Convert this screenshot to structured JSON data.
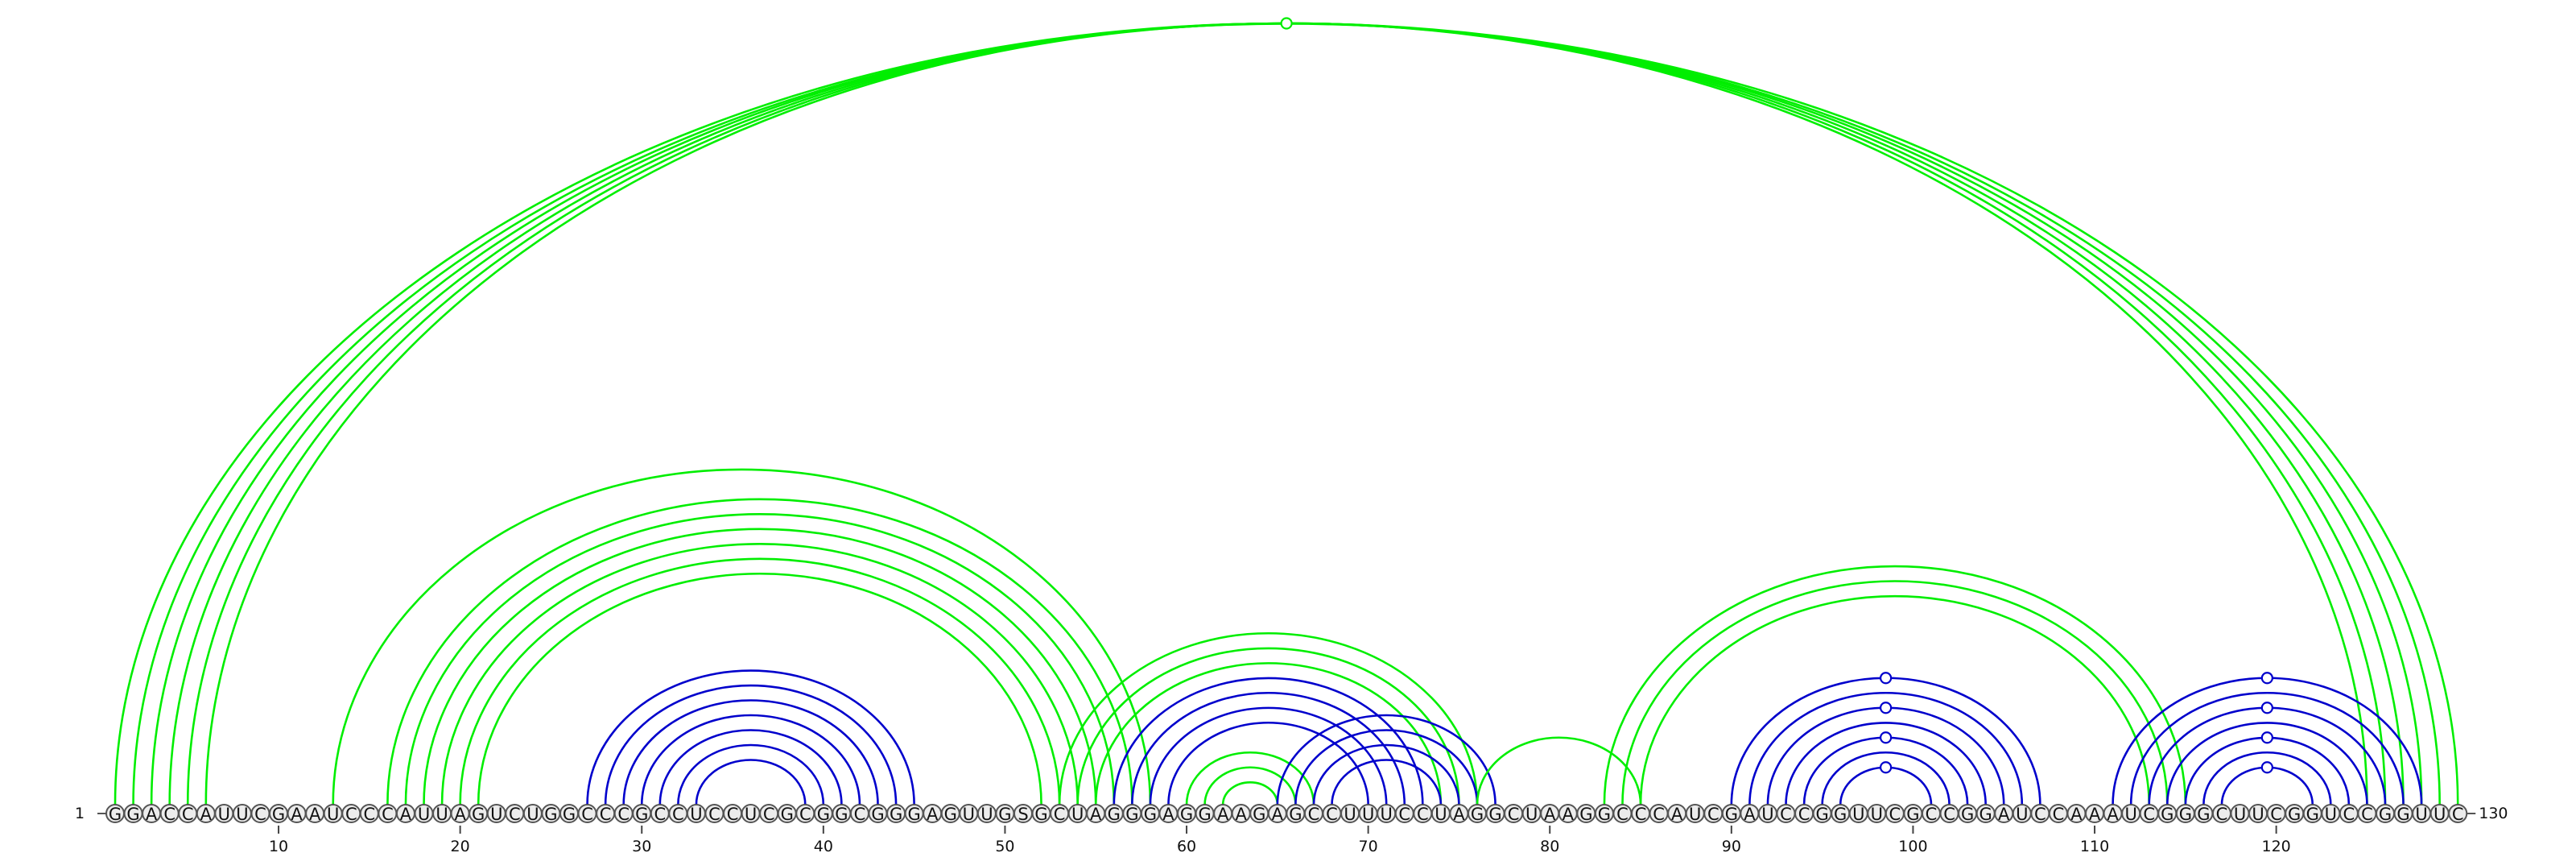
{
  "chart_data": {
    "type": "arc-diagram",
    "sequence": "GGACCAUUCGAAUCCCAUUAGUCUGGCCCGCCUCCUCGCGGCGGGAGUUGSGCUAGGGAGGAAGAGCCUUUCCUAGGCUAAGGCCCAUCGAUCCGGUUCGCCGGAUCCAAAUCGGGCUUCGGUCCGGUUC",
    "start_label": "1",
    "end_label": "130",
    "ticks": [
      "10",
      "20",
      "30",
      "40",
      "50",
      "60",
      "70",
      "80",
      "90",
      "100",
      "110",
      "120"
    ],
    "colors": {
      "green": "#00ee00",
      "blue": "#0000cc"
    },
    "arc_groups": [
      {
        "color": "green",
        "pairs": [
          [
            1,
            130
          ],
          [
            2,
            129
          ],
          [
            3,
            128
          ],
          [
            4,
            127
          ],
          [
            5,
            126
          ],
          [
            6,
            125
          ]
        ],
        "marker": true
      },
      {
        "color": "green",
        "pairs": [
          [
            13,
            58
          ]
        ]
      },
      {
        "color": "green",
        "pairs": [
          [
            16,
            57
          ],
          [
            17,
            56
          ],
          [
            18,
            55
          ]
        ]
      },
      {
        "color": "green",
        "pairs": [
          [
            19,
            54
          ],
          [
            20,
            53
          ],
          [
            21,
            52
          ]
        ]
      },
      {
        "color": "blue",
        "pairs": [
          [
            27,
            45
          ],
          [
            28,
            44
          ],
          [
            29,
            43
          ],
          [
            30,
            42
          ],
          [
            31,
            41
          ],
          [
            32,
            40
          ],
          [
            33,
            39
          ]
        ]
      },
      {
        "color": "green",
        "pairs": [
          [
            53,
            76
          ],
          [
            54,
            75
          ],
          [
            55,
            74
          ]
        ]
      },
      {
        "color": "blue",
        "pairs": [
          [
            56,
            73
          ],
          [
            57,
            72
          ],
          [
            58,
            71
          ],
          [
            59,
            70
          ]
        ]
      },
      {
        "color": "green",
        "pairs": [
          [
            60,
            67
          ],
          [
            61,
            66
          ],
          [
            62,
            65
          ]
        ]
      },
      {
        "color": "blue",
        "pairs": [
          [
            65,
            77
          ],
          [
            66,
            76
          ],
          [
            67,
            75
          ],
          [
            68,
            74
          ]
        ]
      },
      {
        "color": "green",
        "pairs": [
          [
            76,
            85
          ]
        ]
      },
      {
        "color": "green",
        "pairs": [
          [
            83,
            115
          ],
          [
            84,
            114
          ],
          [
            85,
            113
          ]
        ]
      },
      {
        "color": "blue",
        "pairs": [
          [
            90,
            107
          ],
          [
            91,
            106
          ],
          [
            92,
            105
          ],
          [
            93,
            104
          ],
          [
            94,
            103
          ],
          [
            95,
            102
          ],
          [
            96,
            101
          ]
        ],
        "marker": true
      },
      {
        "color": "blue",
        "pairs": [
          [
            111,
            128
          ],
          [
            112,
            127
          ],
          [
            113,
            126
          ],
          [
            114,
            125
          ],
          [
            115,
            124
          ],
          [
            116,
            123
          ],
          [
            117,
            122
          ]
        ],
        "marker": true
      }
    ]
  }
}
